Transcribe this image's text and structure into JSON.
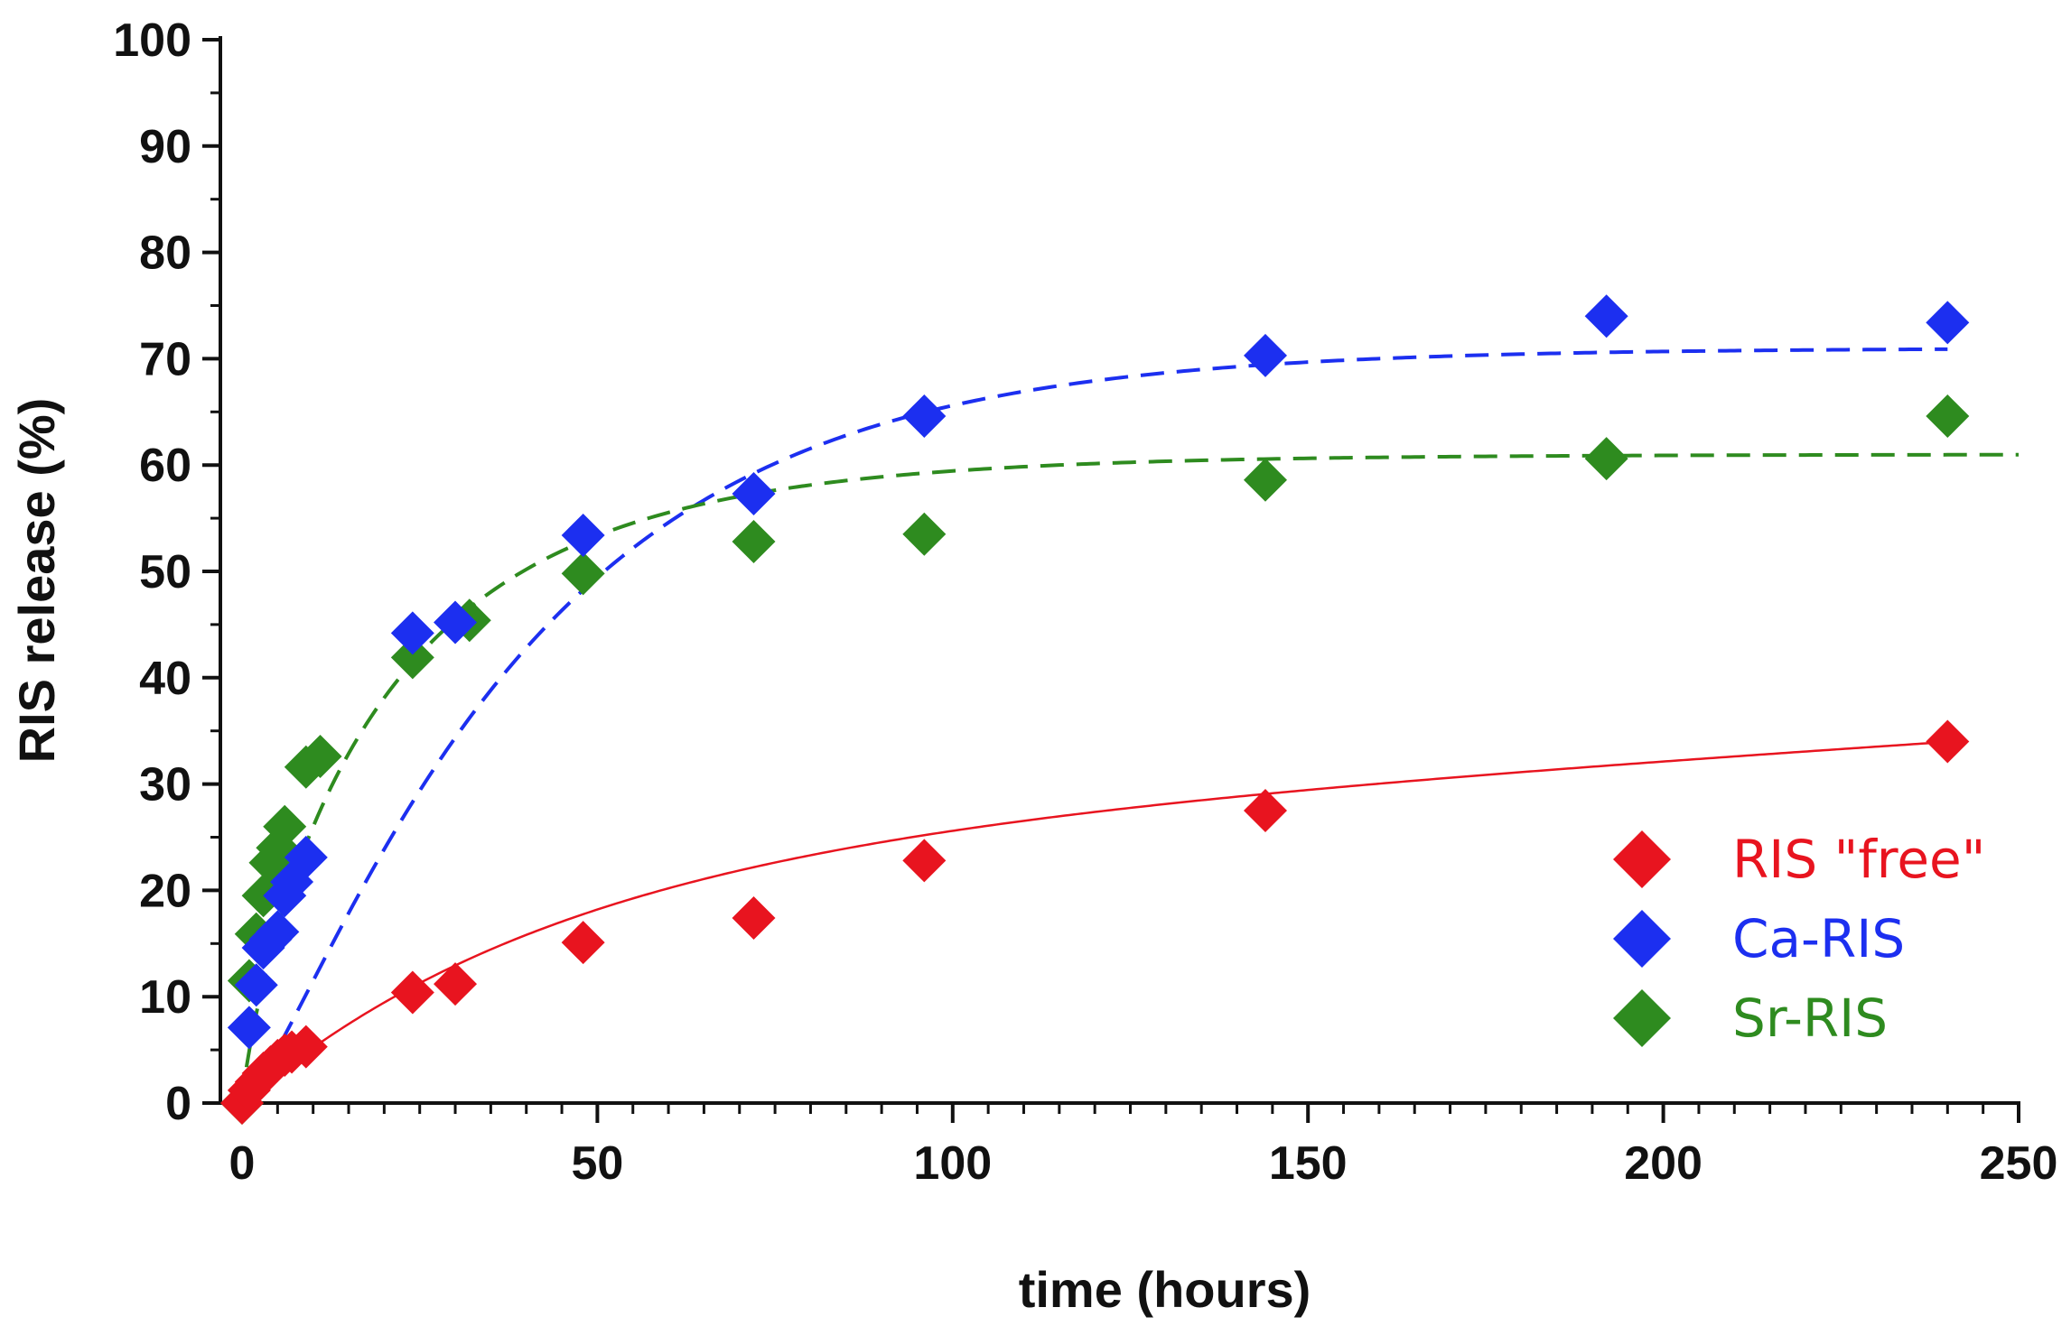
{
  "chart_data": {
    "type": "scatter",
    "title": "",
    "xlabel": "time (hours)",
    "ylabel": "RIS release (%)",
    "xlim": [
      0,
      250
    ],
    "ylim": [
      0,
      100
    ],
    "xticks": [
      0,
      50,
      100,
      150,
      200,
      250
    ],
    "yticks": [
      0,
      10,
      20,
      30,
      40,
      50,
      60,
      70,
      80,
      90,
      100
    ],
    "x_minor_step": 5,
    "legend_position": "bottom-right",
    "grid": false,
    "series": [
      {
        "name": "RIS \"free\"",
        "color": "#e8141f",
        "marker": "diamond",
        "fit_style": "solid",
        "fit": {
          "model": "exponential_plus_linear",
          "a": 24.0,
          "tau": 45.0,
          "slope": 0.042
        },
        "points": [
          [
            0,
            0
          ],
          [
            1,
            1.2
          ],
          [
            2,
            2.0
          ],
          [
            3,
            2.8
          ],
          [
            4,
            3.4
          ],
          [
            5,
            4.0
          ],
          [
            6,
            4.5
          ],
          [
            7,
            4.8
          ],
          [
            9,
            5.3
          ],
          [
            24,
            10.4
          ],
          [
            30,
            11.2
          ],
          [
            48,
            15.1
          ],
          [
            72,
            17.4
          ],
          [
            96,
            22.8
          ],
          [
            144,
            27.5
          ],
          [
            240,
            34.0
          ]
        ]
      },
      {
        "name": "Ca-RIS",
        "color": "#1c2ff0",
        "marker": "diamond",
        "fit_style": "dashed",
        "fit": {
          "model": "sigmoidal",
          "a": 71.0,
          "k": 0.0283,
          "n": 1.3
        },
        "points": [
          [
            1,
            7.1
          ],
          [
            2,
            11.1
          ],
          [
            3,
            14.6
          ],
          [
            4,
            15.4
          ],
          [
            5,
            16.1
          ],
          [
            6,
            19.5
          ],
          [
            7,
            20.8
          ],
          [
            9,
            23.1
          ],
          [
            24,
            44.2
          ],
          [
            30,
            45.2
          ],
          [
            48,
            53.4
          ],
          [
            72,
            57.3
          ],
          [
            96,
            64.6
          ],
          [
            144,
            70.3
          ],
          [
            192,
            74.0
          ],
          [
            240,
            73.4
          ]
        ]
      },
      {
        "name": "Sr-RIS",
        "color": "#2e8b1f",
        "marker": "diamond",
        "fit_style": "dashed",
        "fit": {
          "model": "stretched_exponential",
          "a": 61.0,
          "tau": 20.5,
          "beta": 0.82
        },
        "points": [
          [
            0,
            0
          ],
          [
            1,
            11.5
          ],
          [
            2,
            15.9
          ],
          [
            3,
            19.5
          ],
          [
            4,
            22.6
          ],
          [
            5,
            24.0
          ],
          [
            6,
            26.0
          ],
          [
            9,
            31.6
          ],
          [
            11,
            32.6
          ],
          [
            24,
            41.9
          ],
          [
            32,
            45.4
          ],
          [
            48,
            49.8
          ],
          [
            72,
            52.8
          ],
          [
            96,
            53.5
          ],
          [
            144,
            58.6
          ],
          [
            192,
            60.6
          ],
          [
            240,
            64.6
          ]
        ]
      }
    ]
  }
}
